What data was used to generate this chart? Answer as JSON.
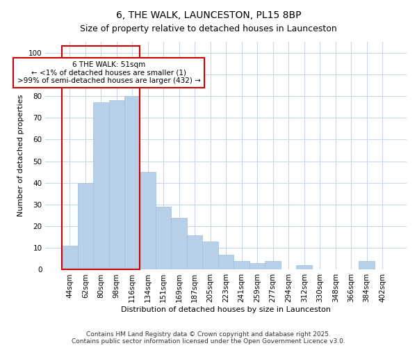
{
  "title": "6, THE WALK, LAUNCESTON, PL15 8BP",
  "subtitle": "Size of property relative to detached houses in Launceston",
  "xlabel": "Distribution of detached houses by size in Launceston",
  "ylabel": "Number of detached properties",
  "categories": [
    "44sqm",
    "62sqm",
    "80sqm",
    "98sqm",
    "116sqm",
    "134sqm",
    "151sqm",
    "169sqm",
    "187sqm",
    "205sqm",
    "223sqm",
    "241sqm",
    "259sqm",
    "277sqm",
    "294sqm",
    "312sqm",
    "330sqm",
    "348sqm",
    "366sqm",
    "384sqm",
    "402sqm"
  ],
  "values": [
    11,
    40,
    77,
    78,
    80,
    45,
    29,
    24,
    16,
    13,
    7,
    4,
    3,
    4,
    0,
    2,
    0,
    0,
    0,
    4,
    0
  ],
  "bar_color": "#b8cfe8",
  "bar_edge_color": "#a0bedd",
  "highlight_color": "#cc0000",
  "annotation_text": "6 THE WALK: 51sqm\n← <1% of detached houses are smaller (1)\n>99% of semi-detached houses are larger (432) →",
  "annotation_box_color": "#ffffff",
  "annotation_box_edge": "#cc0000",
  "ylim": [
    0,
    105
  ],
  "yticks": [
    0,
    10,
    20,
    30,
    40,
    50,
    60,
    70,
    80,
    90,
    100
  ],
  "footer_line1": "Contains HM Land Registry data © Crown copyright and database right 2025.",
  "footer_line2": "Contains public sector information licensed under the Open Government Licence v3.0.",
  "background_color": "#ffffff",
  "plot_bg_color": "#ffffff",
  "grid_color": "#c8d8e8",
  "title_fontsize": 10,
  "subtitle_fontsize": 9,
  "axis_fontsize": 8,
  "tick_fontsize": 7.5,
  "annotation_fontsize": 7.5,
  "footer_fontsize": 6.5
}
